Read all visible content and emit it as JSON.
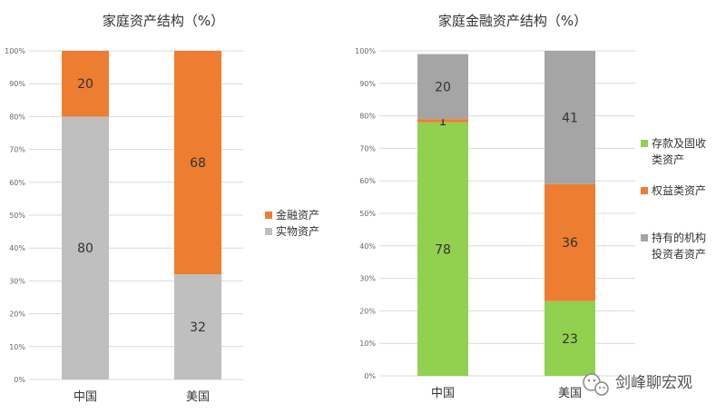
{
  "chart_data": [
    {
      "type": "bar",
      "stacked": true,
      "title": "家庭资产结构（%）",
      "categories": [
        "中国",
        "美国"
      ],
      "ylim": [
        0,
        100
      ],
      "yticks": [
        "0%",
        "10%",
        "20%",
        "30%",
        "40%",
        "50%",
        "60%",
        "70%",
        "80%",
        "90%",
        "100%"
      ],
      "grid": true,
      "legend_position": "right",
      "series": [
        {
          "name": "实物资产",
          "values": [
            80,
            32
          ],
          "color": "#bfbfbf"
        },
        {
          "name": "金融资产",
          "values": [
            20,
            68
          ],
          "color": "#ed7d31"
        }
      ],
      "legend": [
        "金融资产",
        "实物资产"
      ]
    },
    {
      "type": "bar",
      "stacked": true,
      "title": "家庭金融资产结构（%）",
      "categories": [
        "中国",
        "美国"
      ],
      "ylim": [
        0,
        100
      ],
      "yticks": [
        "0%",
        "10%",
        "20%",
        "30%",
        "40%",
        "50%",
        "60%",
        "70%",
        "80%",
        "90%",
        "100%"
      ],
      "grid": true,
      "legend_position": "right",
      "series": [
        {
          "name": "存款及固收类资产",
          "values": [
            78,
            23
          ],
          "color": "#92d050"
        },
        {
          "name": "权益类资产",
          "values": [
            1,
            36
          ],
          "color": "#ed7d31"
        },
        {
          "name": "持有的机构投资者资产",
          "values": [
            20,
            41
          ],
          "color": "#a5a5a5"
        }
      ],
      "legend": [
        {
          "lines": [
            "存款及固收",
            "类资产"
          ]
        },
        {
          "lines": [
            "权益类资产"
          ]
        },
        {
          "lines": [
            "持有的机构",
            "投资者资产"
          ]
        }
      ]
    }
  ],
  "watermark": {
    "text": "剑峰聊宏观",
    "icon": "wechat-icon"
  }
}
